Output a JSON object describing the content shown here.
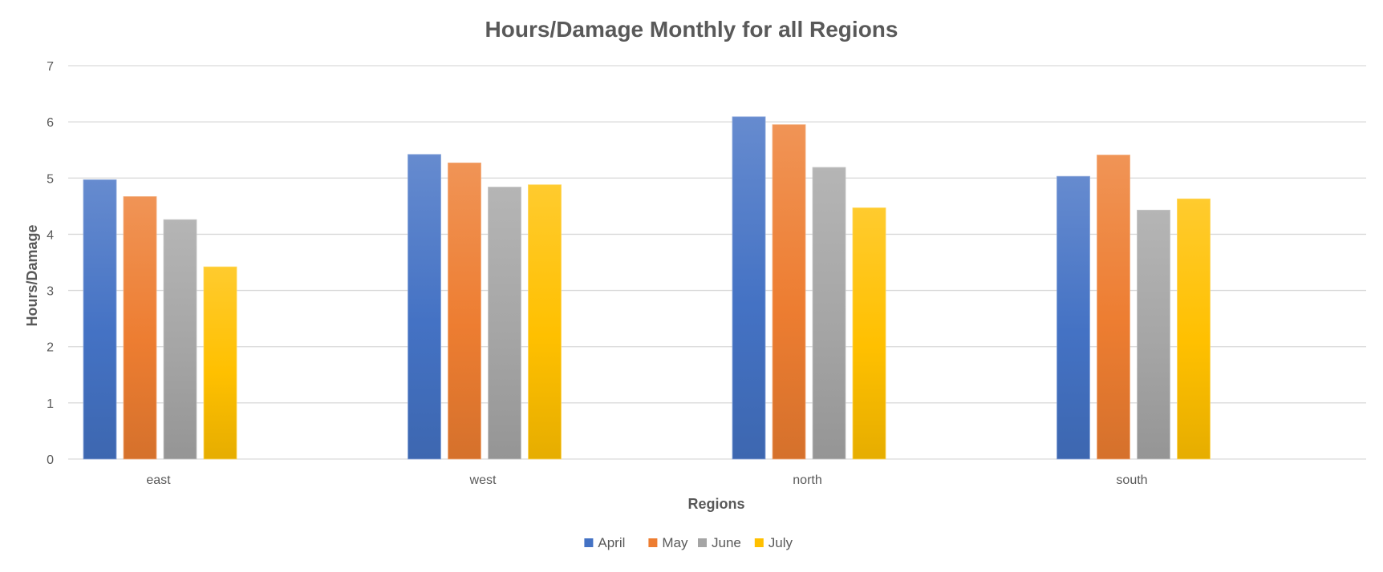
{
  "chart_data": {
    "type": "bar",
    "title": "Hours/Damage Monthly for all Regions",
    "xlabel": "Regions",
    "ylabel": "Hours/Damage",
    "categories": [
      "east",
      "west",
      "north",
      "south"
    ],
    "series": [
      {
        "name": "April",
        "color": "#4472C4",
        "values": [
          4.97,
          5.42,
          6.09,
          5.03
        ]
      },
      {
        "name": "May",
        "color": "#ED7D31",
        "values": [
          4.67,
          5.27,
          5.95,
          5.41
        ]
      },
      {
        "name": "June",
        "color": "#A5A5A5",
        "values": [
          4.26,
          4.84,
          5.19,
          4.43
        ]
      },
      {
        "name": "July",
        "color": "#FFC000",
        "values": [
          3.42,
          4.88,
          4.47,
          4.63
        ]
      }
    ],
    "ylim": [
      0,
      7
    ],
    "yticks": [
      "0",
      "1",
      "2",
      "3",
      "4",
      "5",
      "6",
      "7"
    ],
    "grid": true,
    "legend": "bottom"
  }
}
